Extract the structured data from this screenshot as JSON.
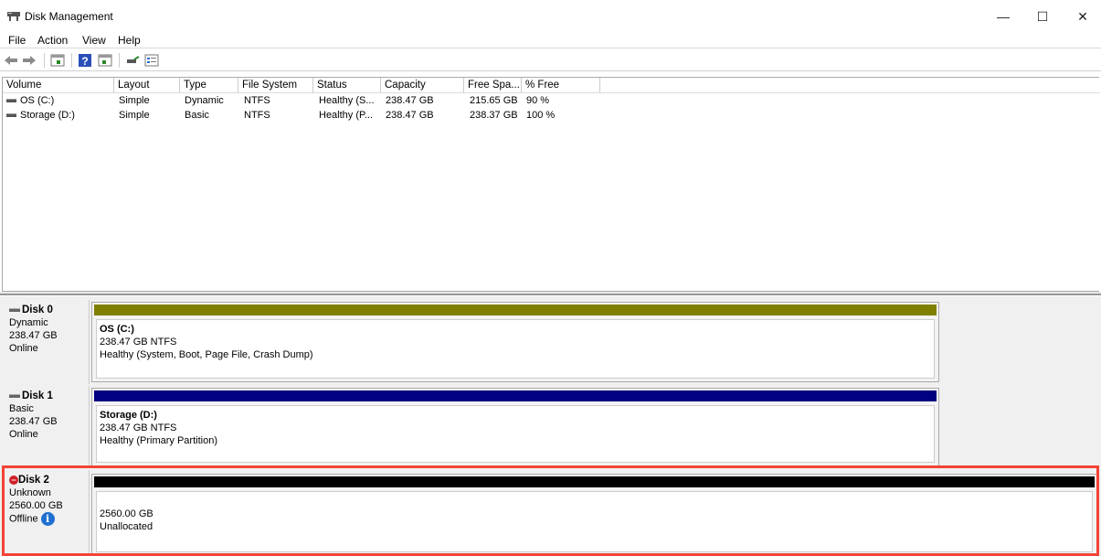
{
  "window": {
    "title": "Disk Management",
    "minimize": "—",
    "maximize": "☐",
    "close": "✕"
  },
  "menu": [
    "File",
    "Action",
    "View",
    "Help"
  ],
  "toolbar": [
    "back-icon",
    "forward-icon",
    "show-hide-console-tree-icon",
    "help-icon",
    "show-action-pane-icon",
    "rescan-icon",
    "properties-icon"
  ],
  "volume_list": {
    "columns": [
      "Volume",
      "Layout",
      "Type",
      "File System",
      "Status",
      "Capacity",
      "Free Spa...",
      "% Free"
    ],
    "rows": [
      [
        "OS (C:)",
        "Simple",
        "Dynamic",
        "NTFS",
        "Healthy (S...",
        "238.47 GB",
        "215.65 GB",
        "90 %"
      ],
      [
        "Storage (D:)",
        "Simple",
        "Basic",
        "NTFS",
        "Healthy (P...",
        "238.47 GB",
        "238.37 GB",
        "100 %"
      ]
    ]
  },
  "disks": [
    {
      "name": "Disk 0",
      "type": "Dynamic",
      "size": "238.47 GB",
      "status": "Online",
      "partition": {
        "title": "OS  (C:)",
        "size": "238.47 GB NTFS",
        "status": "Healthy (System, Boot, Page File, Crash Dump)",
        "color": "#808000"
      }
    },
    {
      "name": "Disk 1",
      "type": "Basic",
      "size": "238.47 GB",
      "status": "Online",
      "partition": {
        "title": "Storage  (D:)",
        "size": "238.47 GB NTFS",
        "status": "Healthy (Primary Partition)",
        "color": "#000080"
      }
    },
    {
      "name": "Disk 2",
      "type": "Unknown",
      "size": "2560.00 GB",
      "status": "Offline",
      "partition": {
        "title": "",
        "size": "2560.00 GB",
        "status": "Unallocated",
        "color": "#000000"
      }
    }
  ],
  "highlight_color": "#f44336"
}
